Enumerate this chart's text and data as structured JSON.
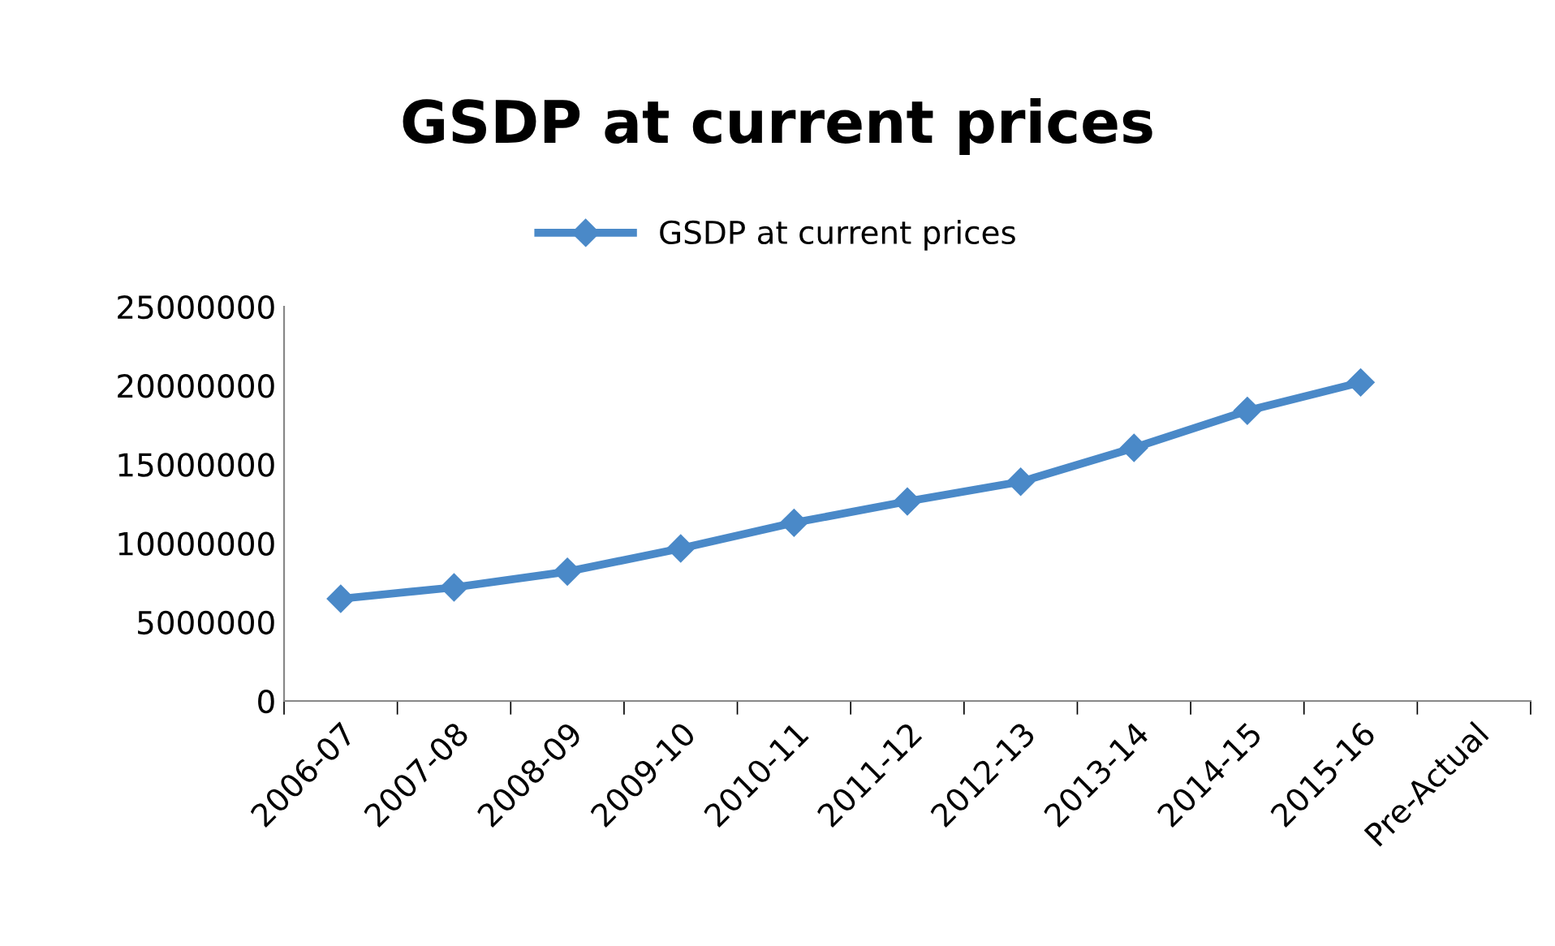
{
  "chart_data": {
    "type": "line",
    "title": "GSDP at current prices",
    "categories": [
      "2006-07",
      "2007-08",
      "2008-09",
      "2009-10",
      "2010-11",
      "2011-12",
      "2012-13",
      "2013-14",
      "2014-15",
      "2015-16",
      "Pre-Actual"
    ],
    "series": [
      {
        "name": "GSDP at current prices",
        "color": "#4a89c8",
        "values": [
          6480000,
          7200000,
          8200000,
          9670000,
          11300000,
          12650000,
          13900000,
          16050000,
          18400000,
          20200000,
          null
        ]
      }
    ],
    "ylim": [
      0,
      25000000
    ],
    "yticks": [
      0,
      5000000,
      10000000,
      15000000,
      20000000,
      25000000
    ],
    "marker": "diamond",
    "line_style": "solid",
    "legend": "top",
    "grid": false
  }
}
